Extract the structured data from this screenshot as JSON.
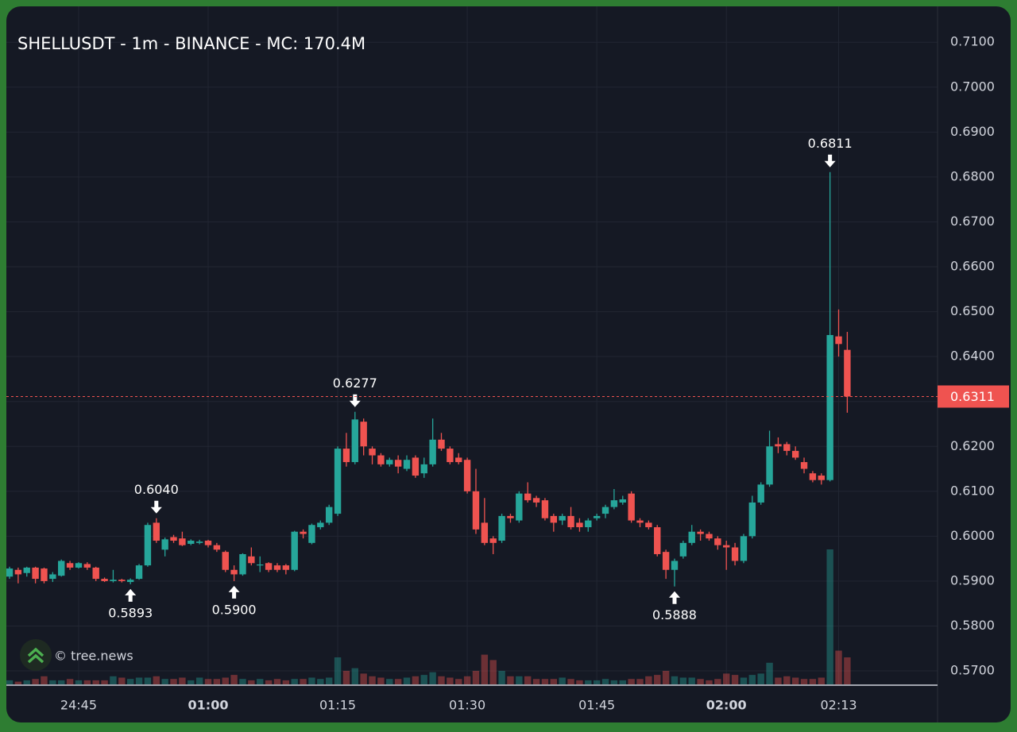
{
  "chart_data": {
    "type": "candlestick",
    "title": "SHELLUSDT - 1m - BINANCE - MC: 170.4M",
    "watermark": "© tree.news",
    "categories": [
      null,
      null,
      null,
      null,
      null,
      null,
      null,
      null,
      "24:45",
      null,
      null,
      null,
      null,
      null,
      null,
      null,
      null,
      null,
      null,
      null,
      null,
      null,
      null,
      "01:00",
      null,
      null,
      null,
      null,
      null,
      null,
      null,
      null,
      null,
      null,
      null,
      null,
      null,
      null,
      "01:15",
      null,
      null,
      null,
      null,
      null,
      null,
      null,
      null,
      null,
      null,
      null,
      null,
      null,
      null,
      "01:30",
      null,
      null,
      null,
      null,
      null,
      null,
      null,
      null,
      null,
      null,
      null,
      null,
      null,
      null,
      "01:45",
      null,
      null,
      null,
      null,
      null,
      null,
      null,
      null,
      null,
      null,
      null,
      null,
      null,
      null,
      "02:00",
      null,
      null,
      null,
      null,
      null,
      null,
      null,
      null,
      null,
      null,
      null,
      null,
      "02:13",
      null
    ],
    "open": [
      0.591,
      0.5925,
      0.5918,
      0.593,
      0.5928,
      0.5905,
      0.5912,
      0.594,
      0.593,
      0.5938,
      0.593,
      0.5905,
      0.59,
      0.5903,
      0.5898,
      0.5905,
      0.5935,
      0.603,
      0.597,
      0.5998,
      0.5995,
      0.5983,
      0.5985,
      0.599,
      0.598,
      0.5965,
      0.5925,
      0.5915,
      0.5955,
      0.5935,
      0.594,
      0.5935,
      0.5935,
      0.5925,
      0.601,
      0.5985,
      0.602,
      0.603,
      0.605,
      0.6195,
      0.6165,
      0.6255,
      0.6195,
      0.618,
      0.616,
      0.617,
      0.615,
      0.6175,
      0.614,
      0.616,
      0.6215,
      0.6195,
      0.6175,
      0.617,
      0.61,
      0.603,
      0.5995,
      0.599,
      0.6045,
      0.6035,
      0.6095,
      0.6085,
      0.608,
      0.6045,
      0.6035,
      0.6045,
      0.603,
      0.602,
      0.604,
      0.605,
      0.6065,
      0.6075,
      0.6095,
      0.6035,
      0.603,
      0.602,
      0.5965,
      0.5925,
      0.5955,
      0.5985,
      0.601,
      0.6005,
      0.5995,
      0.598,
      0.5975,
      0.5945,
      0.6,
      0.6075,
      0.6115,
      0.6205,
      0.6205,
      0.619,
      0.6165,
      0.614,
      0.6135,
      0.6125,
      0.6445,
      0.6415
    ],
    "high": [
      0.5932,
      0.593,
      0.5932,
      0.5932,
      0.593,
      0.592,
      0.5948,
      0.5945,
      0.5942,
      0.5942,
      0.5932,
      0.5908,
      0.5925,
      0.5905,
      0.5906,
      0.5938,
      0.603,
      0.604,
      0.5997,
      0.6003,
      0.601,
      0.5993,
      0.5992,
      0.5992,
      0.5985,
      0.5968,
      0.5935,
      0.5962,
      0.5975,
      0.5955,
      0.5942,
      0.594,
      0.5938,
      0.6012,
      0.6015,
      0.6028,
      0.6035,
      0.607,
      0.62,
      0.623,
      0.6277,
      0.6262,
      0.62,
      0.6185,
      0.6175,
      0.618,
      0.618,
      0.618,
      0.6175,
      0.6262,
      0.623,
      0.62,
      0.6185,
      0.6175,
      0.615,
      0.6085,
      0.6,
      0.605,
      0.605,
      0.61,
      0.612,
      0.609,
      0.6085,
      0.605,
      0.605,
      0.6065,
      0.604,
      0.604,
      0.605,
      0.607,
      0.6105,
      0.609,
      0.61,
      0.604,
      0.6035,
      0.6025,
      0.597,
      0.595,
      0.599,
      0.6025,
      0.6015,
      0.601,
      0.6,
      0.599,
      0.5985,
      0.6005,
      0.609,
      0.612,
      0.6235,
      0.622,
      0.621,
      0.62,
      0.6175,
      0.6145,
      0.614,
      0.6811,
      0.6505,
      0.6455
    ],
    "low": [
      0.5905,
      0.5895,
      0.591,
      0.5895,
      0.5895,
      0.5898,
      0.591,
      0.5925,
      0.5928,
      0.5925,
      0.59,
      0.5898,
      0.5897,
      0.5897,
      0.5893,
      0.5903,
      0.5932,
      0.5985,
      0.5955,
      0.5985,
      0.5978,
      0.598,
      0.5982,
      0.5975,
      0.5965,
      0.592,
      0.59,
      0.5912,
      0.5935,
      0.592,
      0.592,
      0.592,
      0.5915,
      0.5922,
      0.5995,
      0.5982,
      0.6015,
      0.6025,
      0.6045,
      0.6155,
      0.616,
      0.618,
      0.616,
      0.6155,
      0.6155,
      0.614,
      0.6145,
      0.613,
      0.613,
      0.6155,
      0.619,
      0.616,
      0.616,
      0.6095,
      0.6005,
      0.598,
      0.596,
      0.5985,
      0.603,
      0.603,
      0.6075,
      0.6065,
      0.6035,
      0.601,
      0.6025,
      0.6015,
      0.601,
      0.601,
      0.6035,
      0.604,
      0.606,
      0.607,
      0.603,
      0.602,
      0.6015,
      0.5955,
      0.5905,
      0.5888,
      0.595,
      0.598,
      0.599,
      0.599,
      0.597,
      0.5925,
      0.5935,
      0.594,
      0.5995,
      0.607,
      0.611,
      0.6185,
      0.618,
      0.617,
      0.614,
      0.612,
      0.6115,
      0.6122,
      0.64,
      0.6275
    ],
    "close": [
      0.5928,
      0.5915,
      0.593,
      0.5905,
      0.59,
      0.5915,
      0.5945,
      0.593,
      0.594,
      0.593,
      0.5905,
      0.59,
      0.5903,
      0.59,
      0.5903,
      0.5935,
      0.6025,
      0.599,
      0.5993,
      0.599,
      0.598,
      0.599,
      0.5988,
      0.598,
      0.597,
      0.5925,
      0.5915,
      0.596,
      0.594,
      0.5937,
      0.5925,
      0.5925,
      0.5925,
      0.601,
      0.6005,
      0.6025,
      0.603,
      0.6065,
      0.6195,
      0.6165,
      0.626,
      0.62,
      0.618,
      0.616,
      0.617,
      0.6155,
      0.617,
      0.6135,
      0.616,
      0.6215,
      0.6195,
      0.6165,
      0.6165,
      0.61,
      0.6015,
      0.5985,
      0.5985,
      0.6045,
      0.604,
      0.6095,
      0.608,
      0.6075,
      0.604,
      0.603,
      0.6045,
      0.602,
      0.602,
      0.6035,
      0.6045,
      0.6065,
      0.608,
      0.6082,
      0.6035,
      0.603,
      0.602,
      0.596,
      0.5925,
      0.5945,
      0.5985,
      0.601,
      0.6005,
      0.5995,
      0.598,
      0.5975,
      0.5945,
      0.6,
      0.6075,
      0.6115,
      0.62,
      0.62,
      0.619,
      0.6175,
      0.615,
      0.6125,
      0.6125,
      0.6448,
      0.6428,
      0.6311
    ],
    "volume": [
      3,
      2,
      3,
      4,
      6,
      3,
      3,
      4,
      3,
      3,
      3,
      3,
      6,
      5,
      4,
      5,
      5,
      6,
      4,
      4,
      5,
      3,
      5,
      4,
      4,
      5,
      7,
      4,
      3,
      4,
      3,
      4,
      3,
      4,
      4,
      5,
      4,
      5,
      20,
      10,
      12,
      8,
      6,
      5,
      4,
      4,
      5,
      6,
      7,
      9,
      6,
      5,
      4,
      6,
      10,
      22,
      18,
      10,
      6,
      6,
      6,
      4,
      4,
      4,
      5,
      4,
      3,
      3,
      3,
      4,
      3,
      3,
      4,
      4,
      6,
      7,
      10,
      6,
      5,
      5,
      4,
      3,
      4,
      8,
      7,
      5,
      7,
      8,
      16,
      5,
      6,
      5,
      4,
      4,
      5,
      100,
      25,
      20
    ],
    "vlim": [
      0,
      100
    ],
    "ylim": [
      0.567,
      0.718
    ],
    "yticks": [
      {
        "value": 0.57,
        "label": "0.5700"
      },
      {
        "value": 0.58,
        "label": "0.5800"
      },
      {
        "value": 0.59,
        "label": "0.5900"
      },
      {
        "value": 0.6,
        "label": "0.6000"
      },
      {
        "value": 0.61,
        "label": "0.6100"
      },
      {
        "value": 0.62,
        "label": "0.6200"
      },
      {
        "value": 0.63,
        "label": "0.6300"
      },
      {
        "value": 0.64,
        "label": "0.6400"
      },
      {
        "value": 0.65,
        "label": "0.6500"
      },
      {
        "value": 0.66,
        "label": "0.6600"
      },
      {
        "value": 0.67,
        "label": "0.6700"
      },
      {
        "value": 0.68,
        "label": "0.6800"
      },
      {
        "value": 0.69,
        "label": "0.6900"
      },
      {
        "value": 0.7,
        "label": "0.7000"
      },
      {
        "value": 0.71,
        "label": "0.7100"
      }
    ],
    "extremes": [
      {
        "candle": 14,
        "field": "low",
        "label": "0.5893"
      },
      {
        "candle": 17,
        "field": "high",
        "label": "0.6040"
      },
      {
        "candle": 26,
        "field": "low",
        "label": "0.5900"
      },
      {
        "candle": 40,
        "field": "high",
        "label": "0.6277"
      },
      {
        "candle": 77,
        "field": "low",
        "label": "0.5888"
      },
      {
        "candle": 95,
        "field": "high",
        "label": "0.6811"
      }
    ],
    "up_color": "#26a69a",
    "down_color": "#ef5350",
    "grid": true
  }
}
